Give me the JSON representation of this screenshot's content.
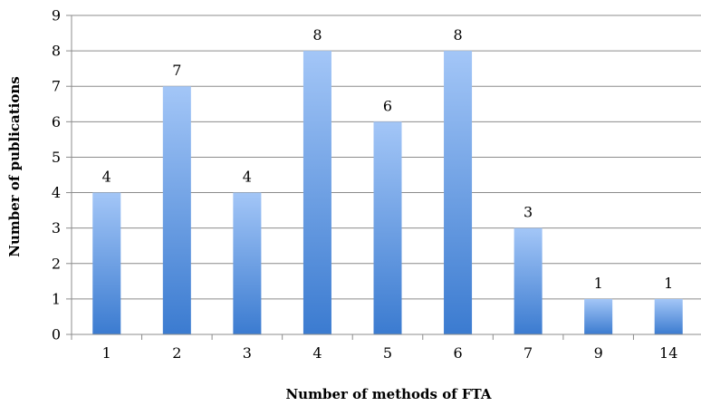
{
  "chart_data": {
    "type": "bar",
    "categories": [
      "1",
      "2",
      "3",
      "4",
      "5",
      "6",
      "7",
      "9",
      "14"
    ],
    "values": [
      4,
      7,
      4,
      8,
      6,
      8,
      3,
      1,
      1
    ],
    "title": "",
    "xlabel": "Number of methods of FTA",
    "ylabel": "Number of publications",
    "ylim": [
      0,
      9
    ],
    "yticks": [
      0,
      1,
      2,
      3,
      4,
      5,
      6,
      7,
      8,
      9
    ],
    "grid": true,
    "data_labels": true,
    "bar_color_top": "#a3c6f7",
    "bar_color_bottom": "#3b7bd0"
  }
}
